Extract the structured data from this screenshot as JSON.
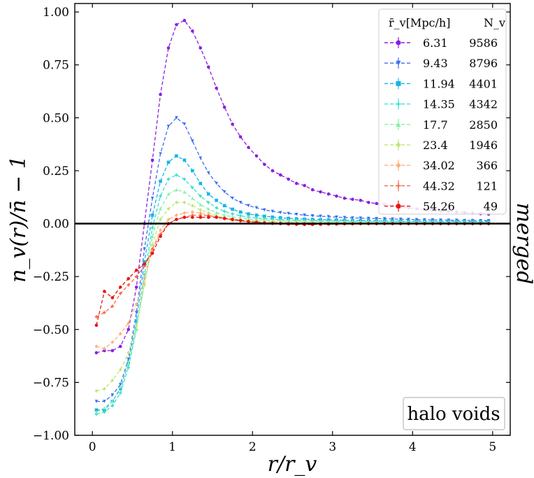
{
  "chart_data": {
    "type": "line",
    "title": "",
    "xlabel": "r/r_v",
    "ylabel": "n_v(r)/n̄ − 1",
    "side_label": "merged",
    "annotation": "halo voids",
    "xlim": [
      -0.22,
      5.22
    ],
    "ylim": [
      -1.0,
      1.04
    ],
    "x_ticks": [
      0,
      1,
      2,
      3,
      4,
      5
    ],
    "x_tick_labels": [
      "0",
      "1",
      "2",
      "3",
      "4",
      "5"
    ],
    "y_ticks": [
      -1.0,
      -0.75,
      -0.5,
      -0.25,
      0.0,
      0.25,
      0.5,
      0.75,
      1.0
    ],
    "y_tick_labels": [
      "−1.00",
      "−0.75",
      "−0.50",
      "−0.25",
      "0.00",
      "0.25",
      "0.50",
      "0.75",
      "1.00"
    ],
    "legend": {
      "position": "top-right",
      "header_radius": "r̄_v[Mpc/h]",
      "header_count": "N_v"
    },
    "reference_line": 0.0,
    "x": [
      0.05,
      0.15,
      0.25,
      0.35,
      0.45,
      0.55,
      0.65,
      0.75,
      0.85,
      0.95,
      1.05,
      1.15,
      1.25,
      1.35,
      1.45,
      1.55,
      1.65,
      1.75,
      1.85,
      1.95,
      2.05,
      2.15,
      2.25,
      2.35,
      2.45,
      2.55,
      2.65,
      2.75,
      2.85,
      2.95,
      3.05,
      3.15,
      3.25,
      3.35,
      3.45,
      3.55,
      3.65,
      3.75,
      3.85,
      3.95,
      4.05,
      4.15,
      4.25,
      4.35,
      4.45,
      4.55,
      4.65,
      4.75,
      4.85,
      4.95
    ],
    "series": [
      {
        "name": "6.31",
        "count": "9586",
        "color": "#8a1fe0",
        "marker": "circle",
        "values": [
          -0.61,
          -0.6,
          -0.6,
          -0.58,
          -0.5,
          -0.3,
          0.0,
          0.3,
          0.61,
          0.83,
          0.94,
          0.96,
          0.91,
          0.83,
          0.74,
          0.64,
          0.55,
          0.47,
          0.41,
          0.36,
          0.32,
          0.28,
          0.25,
          0.23,
          0.21,
          0.19,
          0.18,
          0.16,
          0.15,
          0.14,
          0.13,
          0.12,
          0.115,
          0.11,
          0.1,
          0.095,
          0.09,
          0.085,
          0.08,
          0.075,
          0.07,
          0.068,
          0.065,
          0.06,
          0.058,
          0.055,
          0.052,
          0.05,
          0.047,
          0.045
        ]
      },
      {
        "name": "9.43",
        "count": "8796",
        "color": "#3d6ef0",
        "marker": "triangle_down",
        "values": [
          -0.84,
          -0.84,
          -0.81,
          -0.76,
          -0.64,
          -0.42,
          -0.12,
          0.12,
          0.33,
          0.46,
          0.5,
          0.47,
          0.39,
          0.31,
          0.24,
          0.19,
          0.15,
          0.12,
          0.1,
          0.085,
          0.075,
          0.065,
          0.058,
          0.052,
          0.048,
          0.044,
          0.04,
          0.037,
          0.035,
          0.033,
          0.031,
          0.029,
          0.027,
          0.026,
          0.025,
          0.024,
          0.023,
          0.022,
          0.021,
          0.02,
          0.019,
          0.018,
          0.018,
          0.017,
          0.016,
          0.016,
          0.015,
          0.015,
          0.014,
          0.014
        ]
      },
      {
        "name": "11.94",
        "count": "4401",
        "color": "#18b4e6",
        "marker": "square",
        "values": [
          -0.88,
          -0.88,
          -0.84,
          -0.78,
          -0.66,
          -0.46,
          -0.18,
          0.04,
          0.2,
          0.29,
          0.32,
          0.3,
          0.25,
          0.19,
          0.14,
          0.11,
          0.085,
          0.068,
          0.055,
          0.046,
          0.04,
          0.035,
          0.031,
          0.028,
          0.025,
          0.023,
          0.021,
          0.02,
          0.019,
          0.018,
          0.017,
          0.016,
          0.015,
          0.014,
          0.014,
          0.013,
          0.013,
          0.012,
          0.012,
          0.011,
          0.011,
          0.011,
          0.01,
          0.01,
          0.01,
          0.01,
          0.009,
          0.009,
          0.009,
          0.009
        ]
      },
      {
        "name": "14.35",
        "count": "4342",
        "color": "#3ae0cf",
        "marker": "plus",
        "values": [
          -0.9,
          -0.89,
          -0.86,
          -0.8,
          -0.68,
          -0.5,
          -0.24,
          -0.02,
          0.13,
          0.21,
          0.23,
          0.21,
          0.17,
          0.13,
          0.1,
          0.075,
          0.058,
          0.046,
          0.037,
          0.031,
          0.027,
          0.024,
          0.021,
          0.019,
          0.017,
          0.016,
          0.015,
          0.014,
          0.013,
          0.012,
          0.012,
          0.011,
          0.011,
          0.01,
          0.01,
          0.01,
          0.009,
          0.009,
          0.009,
          0.008,
          0.008,
          0.008,
          0.008,
          0.007,
          0.007,
          0.007,
          0.007,
          0.007,
          0.006,
          0.006
        ]
      },
      {
        "name": "17.7",
        "count": "2850",
        "color": "#86f0a8",
        "marker": "triangle_up",
        "values": [
          -0.89,
          -0.87,
          -0.84,
          -0.77,
          -0.66,
          -0.5,
          -0.28,
          -0.06,
          0.07,
          0.14,
          0.16,
          0.15,
          0.12,
          0.09,
          0.07,
          0.052,
          0.04,
          0.032,
          0.026,
          0.022,
          0.019,
          0.017,
          0.015,
          0.013,
          0.012,
          0.011,
          0.01,
          0.01,
          0.009,
          0.009,
          0.008,
          0.008,
          0.008,
          0.007,
          0.007,
          0.007,
          0.006,
          0.006,
          0.006,
          0.006,
          0.006,
          0.005,
          0.005,
          0.005,
          0.005,
          0.005,
          0.005,
          0.004,
          0.004,
          0.004
        ]
      },
      {
        "name": "23.4",
        "count": "1946",
        "color": "#bfe87a",
        "marker": "diamond",
        "values": [
          -0.79,
          -0.78,
          -0.74,
          -0.69,
          -0.61,
          -0.48,
          -0.29,
          -0.1,
          0.02,
          0.07,
          0.1,
          0.1,
          0.085,
          0.065,
          0.05,
          0.037,
          0.028,
          0.022,
          0.018,
          0.015,
          0.013,
          0.011,
          0.01,
          0.009,
          0.008,
          0.008,
          0.007,
          0.007,
          0.006,
          0.006,
          0.006,
          0.005,
          0.005,
          0.005,
          0.005,
          0.004,
          0.004,
          0.004,
          0.004,
          0.004,
          0.004,
          0.003,
          0.003,
          0.003,
          0.003,
          0.003,
          0.003,
          0.003,
          0.003,
          0.003
        ]
      },
      {
        "name": "34.02",
        "count": "366",
        "color": "#ffb07a",
        "marker": "diamond",
        "values": [
          -0.58,
          -0.59,
          -0.56,
          -0.52,
          -0.47,
          -0.38,
          -0.26,
          -0.12,
          -0.03,
          0.02,
          0.04,
          0.05,
          0.055,
          0.05,
          0.04,
          0.03,
          0.022,
          0.016,
          0.012,
          0.01,
          0.008,
          0.007,
          0.006,
          0.005,
          0.005,
          0.004,
          0.004,
          0.004,
          0.003,
          0.003,
          0.003,
          0.003,
          0.003,
          0.002,
          0.002,
          0.002,
          0.002,
          0.002,
          0.002,
          0.002,
          0.002,
          0.002,
          0.002,
          0.002,
          0.001,
          0.001,
          0.001,
          0.001,
          0.001,
          0.001
        ]
      },
      {
        "name": "44.32",
        "count": "121",
        "color": "#f56a4d",
        "marker": "plus",
        "values": [
          -0.44,
          -0.42,
          -0.39,
          -0.33,
          -0.29,
          -0.25,
          -0.2,
          -0.12,
          -0.05,
          0.0,
          0.02,
          0.03,
          0.04,
          0.04,
          0.038,
          0.032,
          0.025,
          0.018,
          0.013,
          0.009,
          0.006,
          0.004,
          0.003,
          0.002,
          0.002,
          0.001,
          0.001,
          0.001,
          0.0,
          0.0,
          0.0,
          0.0,
          0.0,
          0.0,
          0.0,
          0.0,
          0.0,
          0.0,
          0.0,
          0.0,
          0.0,
          0.0,
          0.0,
          0.0,
          0.0,
          0.0,
          0.0,
          0.0,
          0.0,
          0.0
        ]
      },
      {
        "name": "54.26",
        "count": "49",
        "color": "#e8150f",
        "marker": "circle",
        "values": [
          -0.48,
          -0.32,
          -0.35,
          -0.3,
          -0.26,
          -0.22,
          -0.19,
          -0.14,
          -0.06,
          0.0,
          0.02,
          0.03,
          0.03,
          0.03,
          0.03,
          0.03,
          0.025,
          0.02,
          0.015,
          0.01,
          0.006,
          0.003,
          0.001,
          0.0,
          -0.002,
          -0.003,
          -0.004,
          -0.004,
          -0.003,
          -0.002,
          -0.002,
          -0.001,
          -0.001,
          0.0,
          0.0,
          0.0,
          0.0,
          0.0,
          0.0,
          0.0,
          0.0,
          0.0,
          0.0,
          0.0,
          0.0,
          0.0,
          0.0,
          0.0,
          0.0,
          0.0
        ]
      }
    ]
  }
}
